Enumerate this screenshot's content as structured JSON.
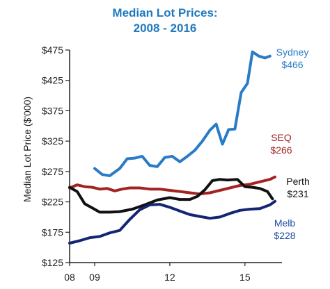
{
  "chart_data": {
    "type": "line",
    "title_line1": "Median Lot Prices:",
    "title_line2": "2008 - 2016",
    "xlabel": "",
    "ylabel": "Median Lot Price ($'000)",
    "ylim": [
      125,
      475
    ],
    "y_ticks": [
      125,
      175,
      225,
      275,
      325,
      375,
      425,
      475
    ],
    "y_tick_labels": [
      "$125",
      "$175",
      "$225",
      "$275",
      "$325",
      "$375",
      "$425",
      "$475"
    ],
    "xlim": [
      2008,
      2016.2
    ],
    "x_ticks": [
      2008,
      2009,
      2012,
      2015
    ],
    "x_tick_labels": [
      "08",
      "09",
      "12",
      "15"
    ],
    "grid": false,
    "series": [
      {
        "name": "Sydney",
        "value_label": "$466",
        "color": "#2a7bc7",
        "points": [
          [
            2009.0,
            280
          ],
          [
            2009.3,
            270
          ],
          [
            2009.6,
            268
          ],
          [
            2010.0,
            280
          ],
          [
            2010.3,
            296
          ],
          [
            2010.6,
            297
          ],
          [
            2010.9,
            300
          ],
          [
            2011.2,
            285
          ],
          [
            2011.5,
            283
          ],
          [
            2011.8,
            298
          ],
          [
            2012.1,
            300
          ],
          [
            2012.4,
            291
          ],
          [
            2012.7,
            300
          ],
          [
            2013.0,
            310
          ],
          [
            2013.3,
            325
          ],
          [
            2013.6,
            343
          ],
          [
            2013.85,
            353
          ],
          [
            2014.1,
            320
          ],
          [
            2014.35,
            344
          ],
          [
            2014.6,
            345
          ],
          [
            2014.85,
            405
          ],
          [
            2015.1,
            420
          ],
          [
            2015.3,
            472
          ],
          [
            2015.55,
            465
          ],
          [
            2015.8,
            462
          ],
          [
            2016.0,
            465
          ]
        ]
      },
      {
        "name": "SEQ",
        "value_label": "$266",
        "color": "#a32322",
        "points": [
          [
            2008.0,
            248
          ],
          [
            2008.3,
            253
          ],
          [
            2008.6,
            250
          ],
          [
            2008.9,
            249
          ],
          [
            2009.2,
            246
          ],
          [
            2009.5,
            247
          ],
          [
            2009.8,
            243
          ],
          [
            2010.1,
            246
          ],
          [
            2010.4,
            248
          ],
          [
            2010.8,
            248
          ],
          [
            2011.2,
            246
          ],
          [
            2011.6,
            246
          ],
          [
            2012.0,
            244
          ],
          [
            2012.4,
            242
          ],
          [
            2012.8,
            240
          ],
          [
            2013.2,
            238
          ],
          [
            2013.6,
            240
          ],
          [
            2014.0,
            244
          ],
          [
            2014.4,
            248
          ],
          [
            2014.8,
            252
          ],
          [
            2015.2,
            254
          ],
          [
            2015.6,
            258
          ],
          [
            2016.0,
            262
          ],
          [
            2016.2,
            266
          ]
        ]
      },
      {
        "name": "Perth",
        "value_label": "$231",
        "color": "#111111",
        "points": [
          [
            2008.0,
            249
          ],
          [
            2008.3,
            242
          ],
          [
            2008.6,
            222
          ],
          [
            2008.9,
            215
          ],
          [
            2009.2,
            208
          ],
          [
            2009.6,
            208
          ],
          [
            2010.0,
            209
          ],
          [
            2010.5,
            213
          ],
          [
            2011.0,
            220
          ],
          [
            2011.5,
            228
          ],
          [
            2012.0,
            232
          ],
          [
            2012.4,
            229
          ],
          [
            2012.8,
            229
          ],
          [
            2013.1,
            234
          ],
          [
            2013.4,
            245
          ],
          [
            2013.7,
            260
          ],
          [
            2014.0,
            262
          ],
          [
            2014.3,
            261
          ],
          [
            2014.7,
            262
          ],
          [
            2015.0,
            250
          ],
          [
            2015.3,
            249
          ],
          [
            2015.6,
            247
          ],
          [
            2015.9,
            242
          ],
          [
            2016.1,
            230
          ]
        ]
      },
      {
        "name": "Melb",
        "value_label": "$228",
        "color": "#142673",
        "points": [
          [
            2008.0,
            157
          ],
          [
            2008.4,
            161
          ],
          [
            2008.8,
            166
          ],
          [
            2009.2,
            168
          ],
          [
            2009.6,
            174
          ],
          [
            2010.0,
            178
          ],
          [
            2010.4,
            196
          ],
          [
            2010.8,
            212
          ],
          [
            2011.2,
            220
          ],
          [
            2011.6,
            221
          ],
          [
            2012.0,
            216
          ],
          [
            2012.4,
            210
          ],
          [
            2012.8,
            204
          ],
          [
            2013.2,
            201
          ],
          [
            2013.6,
            198
          ],
          [
            2014.0,
            200
          ],
          [
            2014.4,
            206
          ],
          [
            2014.8,
            211
          ],
          [
            2015.2,
            213
          ],
          [
            2015.6,
            214
          ],
          [
            2016.0,
            220
          ],
          [
            2016.2,
            226
          ]
        ]
      }
    ]
  }
}
